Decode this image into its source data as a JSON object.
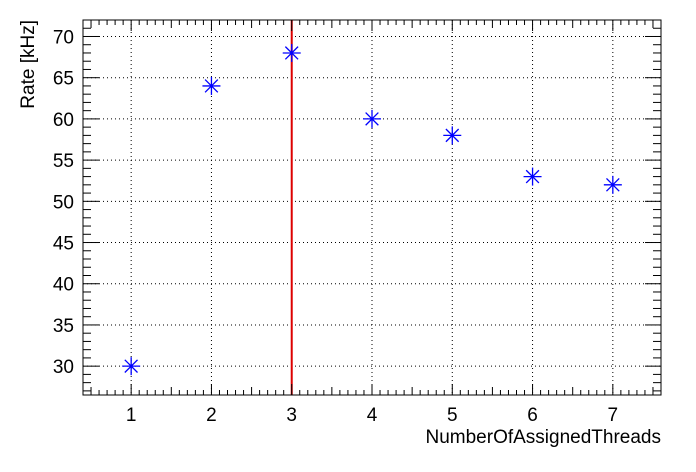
{
  "chart_data": {
    "type": "scatter",
    "title": "",
    "xlabel": "NumberOfAssignedThreads",
    "ylabel": "Rate [kHz]",
    "xlim": [
      0.4,
      7.6
    ],
    "ylim": [
      26.5,
      72.0
    ],
    "x_ticks": [
      1,
      2,
      3,
      4,
      5,
      6,
      7
    ],
    "x_tick_labels": [
      "1",
      "2",
      "3",
      "4",
      "5",
      "6",
      "7"
    ],
    "y_ticks": [
      30,
      35,
      40,
      45,
      50,
      55,
      60,
      65,
      70
    ],
    "y_tick_labels": [
      "30",
      "35",
      "40",
      "45",
      "50",
      "55",
      "60",
      "65",
      "70"
    ],
    "grid": true,
    "marker": "asterisk",
    "series": [
      {
        "x": [
          1,
          2,
          3,
          4,
          5,
          6,
          7
        ],
        "values": [
          30,
          64,
          68,
          60,
          58,
          53,
          52
        ],
        "color": "#0000ff"
      }
    ],
    "vertical_line": {
      "x": 3,
      "color": "#dd0000"
    }
  }
}
